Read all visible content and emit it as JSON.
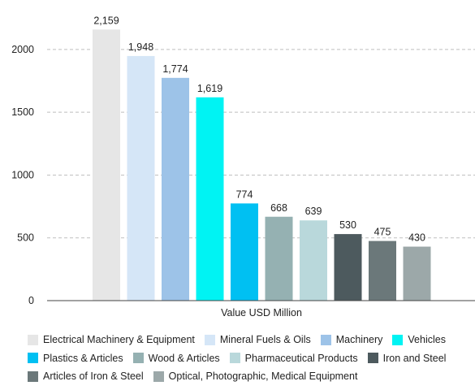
{
  "chart_data": {
    "type": "bar",
    "xlabel": "Value USD Million",
    "ylim": [
      0,
      2200
    ],
    "yticks": [
      0,
      500,
      1000,
      1500,
      2000
    ],
    "grid": true,
    "legend_position": "bottom",
    "series": [
      {
        "name": "Electrical Machinery & Equipment",
        "value": 2159,
        "label": "2,159",
        "color": "#e6e6e6"
      },
      {
        "name": "Mineral Fuels & Oils",
        "value": 1948,
        "label": "1,948",
        "color": "#d5e6f7"
      },
      {
        "name": "Machinery",
        "value": 1774,
        "label": "1,774",
        "color": "#9dc3e8"
      },
      {
        "name": "Vehicles",
        "value": 1619,
        "label": "1,619",
        "color": "#00f3f3"
      },
      {
        "name": "Plastics & Articles",
        "value": 774,
        "label": "774",
        "color": "#00c0f2"
      },
      {
        "name": "Wood & Articles",
        "value": 668,
        "label": "668",
        "color": "#95b1b2"
      },
      {
        "name": "Pharmaceutical Products",
        "value": 639,
        "label": "639",
        "color": "#b9d8db"
      },
      {
        "name": "Iron and Steel",
        "value": 530,
        "label": "530",
        "color": "#4d5a5e"
      },
      {
        "name": "Articles of Iron & Steel",
        "value": 475,
        "label": "475",
        "color": "#6b787a"
      },
      {
        "name": "Optical, Photographic, Medical Equipment",
        "value": 430,
        "label": "430",
        "color": "#9ca8a9"
      }
    ]
  }
}
